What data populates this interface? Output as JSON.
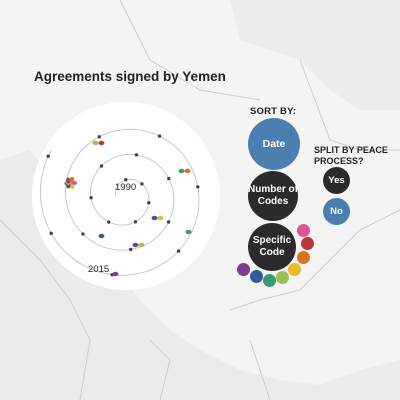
{
  "title": "Agreements signed by Yemen",
  "spiral": {
    "year_start_label": "1990",
    "year_end_label": "2015"
  },
  "controls": {
    "sort_by_label": "SORT BY:",
    "split_label": "SPLIT BY PEACE PROCESS?",
    "date_label": "Date",
    "number_of_codes_label": "Number of Codes",
    "specific_code_label": "Specific Code",
    "yes_label": "Yes",
    "no_label": "No"
  },
  "colors": {
    "map_land": "#f4f4f4",
    "map_water": "#e9e9e9",
    "border": "#cccccc",
    "accent_blue": "#4a7fb0",
    "button_dark": "#2b2b2b",
    "spiral_line": "#bbbbbb",
    "dot": "#444444"
  },
  "code_colors": [
    "#e0559a",
    "#b8393a",
    "#d9731f",
    "#e7bb2a",
    "#9fbf55",
    "#3b9b76",
    "#2f5d99",
    "#7b3f8d"
  ]
}
